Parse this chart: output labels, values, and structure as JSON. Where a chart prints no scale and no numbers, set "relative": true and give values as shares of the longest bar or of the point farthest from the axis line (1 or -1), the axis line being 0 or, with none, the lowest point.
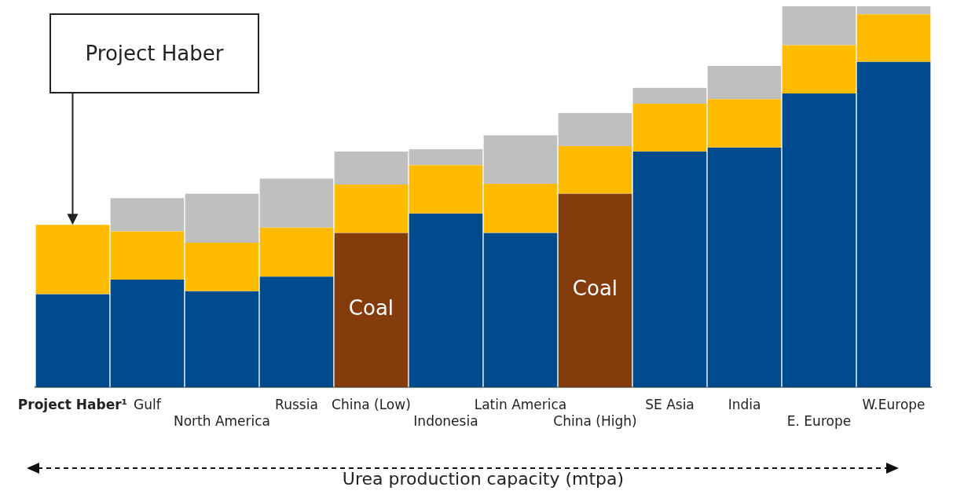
{
  "chart_data": {
    "type": "bar",
    "stacked": true,
    "relative": true,
    "xlabel": "Urea production capacity (mtpa)",
    "categories": [
      "Project Haber¹",
      "Gulf",
      "North America",
      "Russia",
      "China (Low)",
      "Indonesia",
      "Latin America",
      "China (High)",
      "SE Asia",
      "India",
      "E. Europe",
      "W.Europe"
    ],
    "series": [
      {
        "color": "#004b8d",
        "colors": [
          "#004b8d",
          "#004b8d",
          "#004b8d",
          "#004b8d",
          "#843c0c",
          "#004b8d",
          "#004b8d",
          "#843c0c",
          "#004b8d",
          "#004b8d",
          "#004b8d",
          "#004b8d"
        ],
        "values": [
          0.244,
          0.282,
          0.252,
          0.29,
          0.405,
          0.456,
          0.405,
          0.508,
          0.619,
          0.629,
          0.771,
          0.854
        ]
      },
      {
        "color": "#ffbb00",
        "values": [
          0.182,
          0.127,
          0.127,
          0.129,
          0.127,
          0.127,
          0.129,
          0.125,
          0.125,
          0.127,
          0.127,
          0.125
        ]
      },
      {
        "color": "#bfbfbf",
        "values": [
          null,
          0.087,
          0.129,
          0.129,
          0.087,
          0.042,
          0.127,
          0.087,
          0.042,
          0.087,
          0.102,
          0.021
        ]
      }
    ],
    "annotations": [
      "Project Haber",
      "Coal",
      "Coal"
    ],
    "grid": false,
    "legend": false
  }
}
